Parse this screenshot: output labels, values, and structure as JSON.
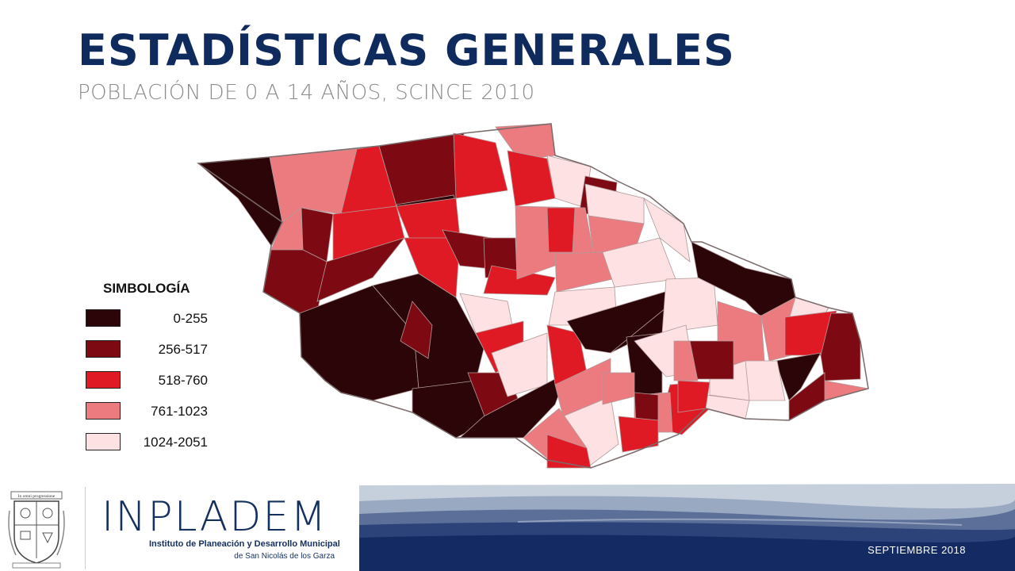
{
  "header": {
    "title": "ESTADÍSTICAS GENERALES",
    "subtitle": "POBLACIÓN DE 0 A 14 AÑOS, SCINCE 2010"
  },
  "legend": {
    "title": "SIMBOLOGÍA",
    "classes": [
      {
        "label": "0-255",
        "color": "#2b0508"
      },
      {
        "label": "256-517",
        "color": "#7d0a12"
      },
      {
        "label": "518-760",
        "color": "#e01a24"
      },
      {
        "label": "761-1023",
        "color": "#ec7b80"
      },
      {
        "label": "1024-2051",
        "color": "#fde1e3"
      }
    ]
  },
  "footer": {
    "brand": "INPLADEM",
    "brand_line1": "Instituto de Planeación y Desarrollo Municipal",
    "brand_line2": "de San Nicolás de los Garza",
    "date": "SEPTIEMBRE 2018",
    "shield_motto": "In omni progressione"
  },
  "colors": {
    "navy": "#0f2a5c",
    "accent_triangle": "#e8861e",
    "subtitle_gray": "#8c8c8c"
  }
}
